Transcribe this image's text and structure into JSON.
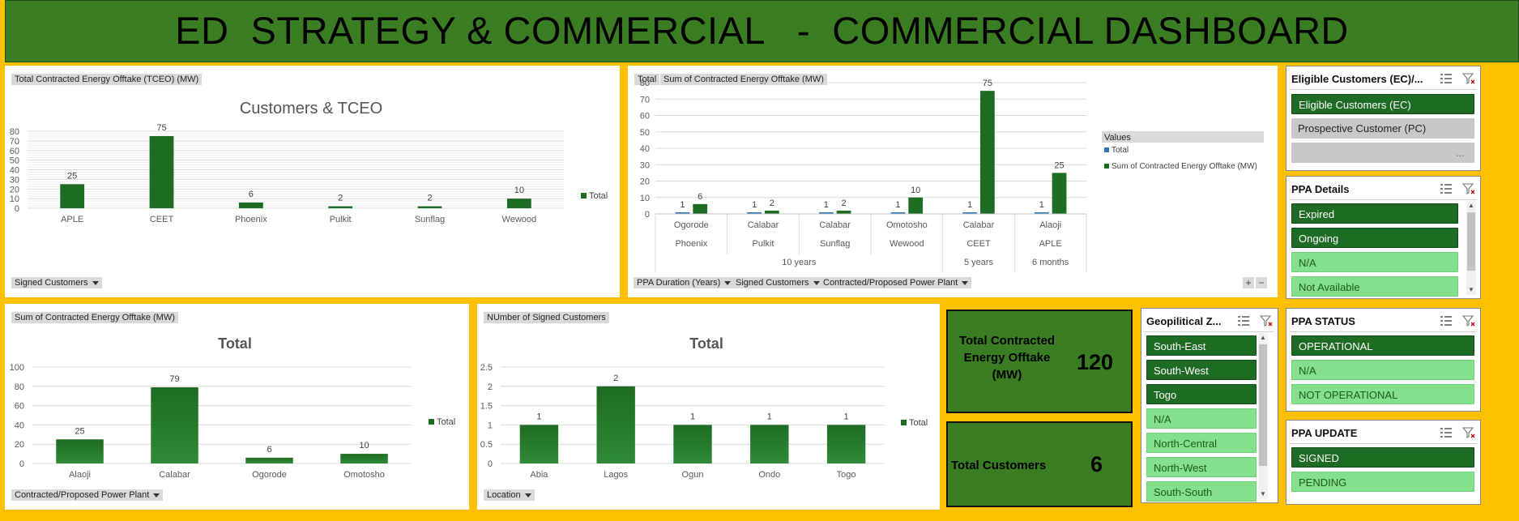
{
  "title": "ED  STRATEGY & COMMERCIAL   -  COMMERCIAL DASHBOARD",
  "colors": {
    "background": "#ffc000",
    "title_bar": "#3a7d22",
    "bar": "#1e6b23",
    "slicer_selected": "#1e6b23",
    "slicer_unselected": "#85e08c"
  },
  "chart1": {
    "field_label": "Total Contracted Energy Offtake (TCEO) (MW)",
    "filter_label": "Signed Customers",
    "chart_data": {
      "type": "bar",
      "title": "Customers & TCEO",
      "categories": [
        "APLE",
        "CEET",
        "Phoenix",
        "Pulkit",
        "Sunflag",
        "Wewood"
      ],
      "values": [
        25,
        75,
        6,
        2,
        2,
        10
      ],
      "ylim": [
        0,
        80
      ],
      "yticks": [
        0,
        10,
        20,
        30,
        40,
        50,
        60,
        70,
        80
      ],
      "legend": "Total",
      "legend_position": "right",
      "grid": true
    }
  },
  "chart2": {
    "field_labels": [
      "Total",
      "Sum of Contracted Energy Offtake (MW)"
    ],
    "filter_labels": [
      "PPA Duration (Years)",
      "Signed Customers",
      "Contracted/Proposed Power Plant"
    ],
    "legend_title": "Values",
    "chart_data": {
      "type": "bar",
      "categories": [
        {
          "plant": "Ogorode",
          "customer": "Phoenix",
          "duration": "10 years"
        },
        {
          "plant": "Calabar",
          "customer": "Pulkit",
          "duration": "10 years"
        },
        {
          "plant": "Calabar",
          "customer": "Sunflag",
          "duration": "10 years"
        },
        {
          "plant": "Omotosho",
          "customer": "Wewood",
          "duration": "10 years"
        },
        {
          "plant": "Calabar",
          "customer": "CEET",
          "duration": "5 years"
        },
        {
          "plant": "Alaoji",
          "customer": "APLE",
          "duration": "6 months"
        }
      ],
      "duration_groups": [
        "10 years",
        "5 years",
        "6 months"
      ],
      "series": [
        {
          "name": "Total",
          "values": [
            1,
            1,
            1,
            1,
            1,
            1
          ],
          "color": "#2e75b6"
        },
        {
          "name": "Sum of Contracted Energy Offtake (MW)",
          "values": [
            6,
            2,
            2,
            10,
            75,
            25
          ],
          "color": "#1e6b23"
        }
      ],
      "ylim": [
        0,
        80
      ],
      "yticks": [
        0,
        10,
        20,
        30,
        40,
        50,
        60,
        70,
        80
      ],
      "legend_position": "right",
      "grid": true
    }
  },
  "chart3": {
    "field_label": "Sum of Contracted Energy Offtake (MW)",
    "filter_label": "Contracted/Proposed Power Plant",
    "chart_data": {
      "type": "bar",
      "title": "Total",
      "categories": [
        "Alaoji",
        "Calabar",
        "Ogorode",
        "Omotosho"
      ],
      "values": [
        25,
        79,
        6,
        10
      ],
      "ylim": [
        0,
        100
      ],
      "yticks": [
        0,
        20,
        40,
        60,
        80,
        100
      ],
      "legend": "Total",
      "legend_position": "right",
      "grid": true
    }
  },
  "chart4": {
    "field_label": "NUmber of Signed Customers",
    "filter_label": "Location",
    "chart_data": {
      "type": "bar",
      "title": "Total",
      "categories": [
        "Abia",
        "Lagos",
        "Ogun",
        "Ondo",
        "Togo"
      ],
      "values": [
        1,
        2,
        1,
        1,
        1
      ],
      "ylim": [
        0,
        2.5
      ],
      "yticks": [
        "0",
        "0.5",
        "1",
        "1.5",
        "2",
        "2.5"
      ],
      "legend": "Total",
      "legend_position": "right",
      "grid": true
    }
  },
  "kpi": {
    "tceo_label": "Total Contracted Energy Offtake (MW)",
    "tceo_value": "120",
    "customers_label": "Total Customers",
    "customers_value": "6"
  },
  "slicers": {
    "eligible": {
      "title": "Eligible Customers (EC)/...",
      "items": [
        "Eligible Customers (EC)",
        "Prospective Customer (PC)",
        "..."
      ],
      "states": [
        "selected",
        "gray",
        "empty"
      ]
    },
    "ppa_details": {
      "title": "PPA Details",
      "items": [
        "Expired",
        "Ongoing",
        "N/A",
        "Not Available"
      ],
      "states": [
        "selected",
        "selected",
        "unselected",
        "unselected"
      ]
    },
    "geo": {
      "title": "Geopilitical Z...",
      "items": [
        "South-East",
        "South-West",
        "Togo",
        "N/A",
        "North-Central",
        "North-West",
        "South-South"
      ],
      "states": [
        "selected",
        "selected",
        "selected",
        "unselected",
        "unselected",
        "unselected",
        "unselected"
      ]
    },
    "ppa_status": {
      "title": "PPA STATUS",
      "items": [
        "OPERATIONAL",
        "N/A",
        "NOT OPERATIONAL"
      ],
      "states": [
        "selected",
        "unselected",
        "unselected"
      ]
    },
    "ppa_update": {
      "title": "PPA UPDATE",
      "items": [
        "SIGNED",
        "PENDING"
      ],
      "states": [
        "selected",
        "unselected"
      ]
    }
  }
}
